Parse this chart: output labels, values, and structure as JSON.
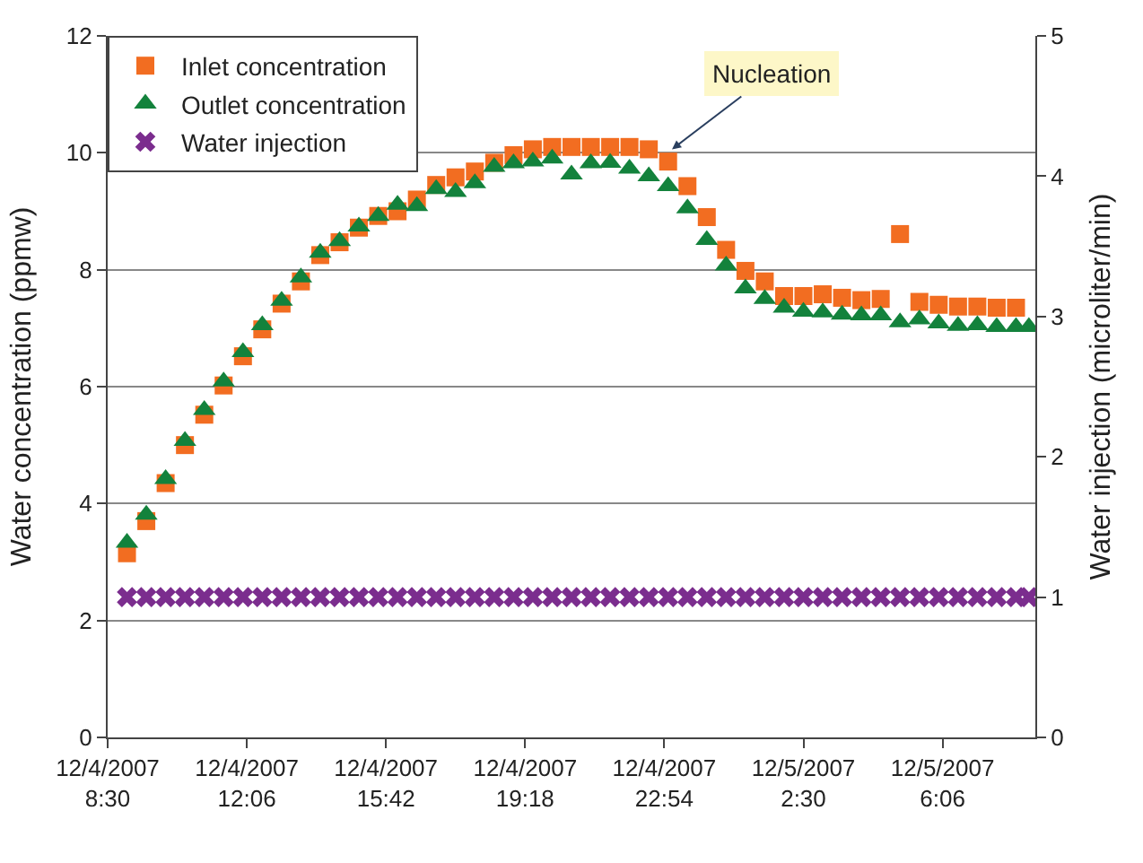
{
  "chart_data": {
    "type": "scatter",
    "ylabel": "Water concentration (ppmw)",
    "y2label": "Water injection (microliter/min)",
    "xlim": [
      "2007-12-04T08:30",
      "2007-12-05T08:30"
    ],
    "xticks": [
      {
        "value": "2007-12-04T08:30",
        "label": "12/4/2007\n8:30"
      },
      {
        "value": "2007-12-04T12:06",
        "label": "12/4/2007\n12:06"
      },
      {
        "value": "2007-12-04T15:42",
        "label": "12/4/2007\n15:42"
      },
      {
        "value": "2007-12-04T19:18",
        "label": "12/4/2007\n19:18"
      },
      {
        "value": "2007-12-04T22:54",
        "label": "12/4/2007\n22:54"
      },
      {
        "value": "2007-12-05T02:30",
        "label": "12/5/2007\n2:30"
      },
      {
        "value": "2007-12-05T06:06",
        "label": "12/5/2007\n6:06"
      }
    ],
    "ylim": [
      0,
      12
    ],
    "yticks": [
      0,
      2,
      4,
      6,
      8,
      10,
      12
    ],
    "y2lim": [
      0,
      5
    ],
    "y2ticks": [
      0,
      1,
      2,
      3,
      4,
      5
    ],
    "grid": "y",
    "legend": "top left",
    "annotations": [
      {
        "text": "Nucleation",
        "x": "2007-12-04T23:06",
        "y": 10.06
      }
    ],
    "series": [
      {
        "name": "Inlet concentration",
        "color": "#f26d21",
        "marker": "square",
        "x": [
          "2007-12-04T09:00",
          "2007-12-04T09:30",
          "2007-12-04T10:00",
          "2007-12-04T10:30",
          "2007-12-04T11:00",
          "2007-12-04T11:30",
          "2007-12-04T12:00",
          "2007-12-04T12:30",
          "2007-12-04T13:00",
          "2007-12-04T13:30",
          "2007-12-04T14:00",
          "2007-12-04T14:30",
          "2007-12-04T15:00",
          "2007-12-04T15:30",
          "2007-12-04T16:00",
          "2007-12-04T16:30",
          "2007-12-04T17:00",
          "2007-12-04T17:30",
          "2007-12-04T18:00",
          "2007-12-04T18:30",
          "2007-12-04T19:00",
          "2007-12-04T19:30",
          "2007-12-04T20:00",
          "2007-12-04T20:30",
          "2007-12-04T21:00",
          "2007-12-04T21:30",
          "2007-12-04T22:00",
          "2007-12-04T22:30",
          "2007-12-04T23:00",
          "2007-12-04T23:30",
          "2007-12-05T00:00",
          "2007-12-05T00:30",
          "2007-12-05T01:00",
          "2007-12-05T01:30",
          "2007-12-05T02:00",
          "2007-12-05T02:30",
          "2007-12-05T03:00",
          "2007-12-05T03:30",
          "2007-12-05T04:00",
          "2007-12-05T04:30",
          "2007-12-05T05:00",
          "2007-12-05T05:30",
          "2007-12-05T06:00",
          "2007-12-05T06:30",
          "2007-12-05T07:00",
          "2007-12-05T07:30",
          "2007-12-05T08:00"
        ],
        "values": [
          3.15,
          3.7,
          4.35,
          5.0,
          5.52,
          6.02,
          6.52,
          6.98,
          7.42,
          7.8,
          8.25,
          8.47,
          8.72,
          8.92,
          9.0,
          9.2,
          9.45,
          9.58,
          9.68,
          9.83,
          9.96,
          10.06,
          10.1,
          10.1,
          10.1,
          10.1,
          10.1,
          10.06,
          9.85,
          9.43,
          8.9,
          8.34,
          7.98,
          7.8,
          7.55,
          7.55,
          7.58,
          7.52,
          7.48,
          7.5,
          8.61,
          7.45,
          7.4,
          7.37,
          7.37,
          7.35,
          7.35
        ]
      },
      {
        "name": "Outlet concentration",
        "color": "#13823c",
        "marker": "triangle",
        "x": [
          "2007-12-04T09:00",
          "2007-12-04T09:30",
          "2007-12-04T10:00",
          "2007-12-04T10:30",
          "2007-12-04T11:00",
          "2007-12-04T11:30",
          "2007-12-04T12:00",
          "2007-12-04T12:30",
          "2007-12-04T13:00",
          "2007-12-04T13:30",
          "2007-12-04T14:00",
          "2007-12-04T14:30",
          "2007-12-04T15:00",
          "2007-12-04T15:30",
          "2007-12-04T16:00",
          "2007-12-04T16:30",
          "2007-12-04T17:00",
          "2007-12-04T17:30",
          "2007-12-04T18:00",
          "2007-12-04T18:30",
          "2007-12-04T19:00",
          "2007-12-04T19:30",
          "2007-12-04T20:00",
          "2007-12-04T20:30",
          "2007-12-04T21:00",
          "2007-12-04T21:30",
          "2007-12-04T22:00",
          "2007-12-04T22:30",
          "2007-12-04T23:00",
          "2007-12-04T23:30",
          "2007-12-05T00:00",
          "2007-12-05T00:30",
          "2007-12-05T01:00",
          "2007-12-05T01:30",
          "2007-12-05T02:00",
          "2007-12-05T02:30",
          "2007-12-05T03:00",
          "2007-12-05T03:30",
          "2007-12-05T04:00",
          "2007-12-05T04:30",
          "2007-12-05T05:00",
          "2007-12-05T05:30",
          "2007-12-05T06:00",
          "2007-12-05T06:30",
          "2007-12-05T07:00",
          "2007-12-05T07:30",
          "2007-12-05T08:00",
          "2007-12-05T08:20"
        ],
        "values": [
          3.33,
          3.81,
          4.42,
          5.07,
          5.6,
          6.09,
          6.59,
          7.05,
          7.47,
          7.87,
          8.29,
          8.49,
          8.74,
          8.92,
          9.11,
          9.09,
          9.38,
          9.33,
          9.48,
          9.76,
          9.82,
          9.85,
          9.9,
          9.63,
          9.82,
          9.83,
          9.73,
          9.6,
          9.43,
          9.05,
          8.51,
          8.07,
          7.68,
          7.5,
          7.35,
          7.28,
          7.27,
          7.23,
          7.22,
          7.22,
          7.1,
          7.15,
          7.08,
          7.04,
          7.05,
          7.02,
          7.02,
          7.02
        ]
      },
      {
        "name": "Water injection",
        "color": "#7b2d8e",
        "marker": "cross",
        "axis": "y2",
        "x": [
          "2007-12-04T09:00",
          "2007-12-04T09:30",
          "2007-12-04T10:00",
          "2007-12-04T10:30",
          "2007-12-04T11:00",
          "2007-12-04T11:30",
          "2007-12-04T12:00",
          "2007-12-04T12:30",
          "2007-12-04T13:00",
          "2007-12-04T13:30",
          "2007-12-04T14:00",
          "2007-12-04T14:30",
          "2007-12-04T15:00",
          "2007-12-04T15:30",
          "2007-12-04T16:00",
          "2007-12-04T16:30",
          "2007-12-04T17:00",
          "2007-12-04T17:30",
          "2007-12-04T18:00",
          "2007-12-04T18:30",
          "2007-12-04T19:00",
          "2007-12-04T19:30",
          "2007-12-04T20:00",
          "2007-12-04T20:30",
          "2007-12-04T21:00",
          "2007-12-04T21:30",
          "2007-12-04T22:00",
          "2007-12-04T22:30",
          "2007-12-04T23:00",
          "2007-12-04T23:30",
          "2007-12-05T00:00",
          "2007-12-05T00:30",
          "2007-12-05T01:00",
          "2007-12-05T01:30",
          "2007-12-05T02:00",
          "2007-12-05T02:30",
          "2007-12-05T03:00",
          "2007-12-05T03:30",
          "2007-12-05T04:00",
          "2007-12-05T04:30",
          "2007-12-05T05:00",
          "2007-12-05T05:30",
          "2007-12-05T06:00",
          "2007-12-05T06:30",
          "2007-12-05T07:00",
          "2007-12-05T07:30",
          "2007-12-05T08:00",
          "2007-12-05T08:20"
        ],
        "values": [
          1,
          1,
          1,
          1,
          1,
          1,
          1,
          1,
          1,
          1,
          1,
          1,
          1,
          1,
          1,
          1,
          1,
          1,
          1,
          1,
          1,
          1,
          1,
          1,
          1,
          1,
          1,
          1,
          1,
          1,
          1,
          1,
          1,
          1,
          1,
          1,
          1,
          1,
          1,
          1,
          1,
          1,
          1,
          1,
          1,
          1,
          1,
          1
        ]
      }
    ]
  }
}
